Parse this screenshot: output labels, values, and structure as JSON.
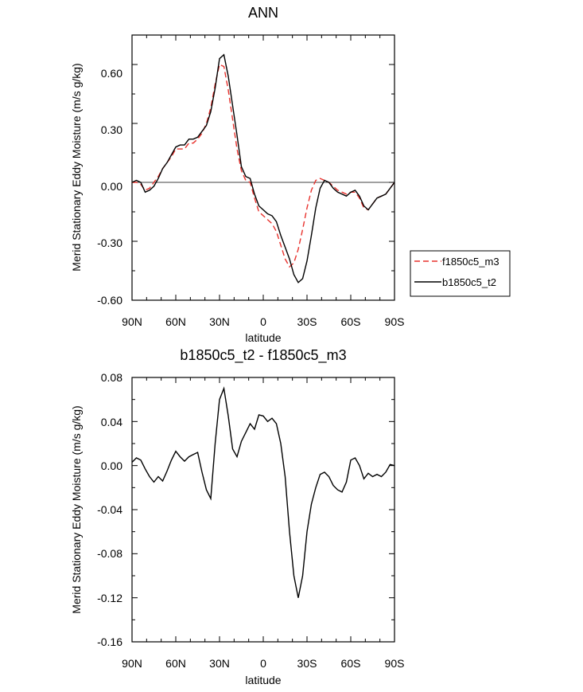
{
  "chart_data": [
    {
      "type": "line",
      "title": "ANN",
      "xlabel": "latitude",
      "ylabel": "Merid Stationary Eddy Moisture (m/s g/kg)",
      "xlim": [
        90,
        -90
      ],
      "ylim": [
        -0.6,
        0.75
      ],
      "x_ticks": [
        90,
        60,
        30,
        0,
        -30,
        -60,
        -90
      ],
      "x_tick_labels": [
        "90N",
        "60N",
        "30N",
        "0",
        "30S",
        "60S",
        "90S"
      ],
      "y_ticks": [
        -0.6,
        -0.3,
        0.0,
        0.3,
        0.6
      ],
      "y_tick_labels": [
        "-0.60",
        "-0.30",
        "0.00",
        "0.30",
        "0.60"
      ],
      "legend": {
        "placement": "right",
        "entries": [
          "f1850c5_m3",
          "b1850c5_t2"
        ]
      },
      "series": [
        {
          "name": "f1850c5_m3",
          "color": "#e8322d",
          "style": "dashed",
          "x": [
            90,
            87,
            84,
            81,
            78,
            75,
            72,
            69,
            66,
            63,
            60,
            57,
            54,
            51,
            48,
            45,
            42,
            39,
            36,
            33,
            30,
            27,
            24,
            21,
            18,
            15,
            12,
            9,
            6,
            3,
            0,
            -3,
            -6,
            -9,
            -12,
            -15,
            -18,
            -21,
            -24,
            -27,
            -30,
            -33,
            -36,
            -39,
            -42,
            -45,
            -48,
            -51,
            -54,
            -57,
            -60,
            -63,
            -66,
            -69,
            -72,
            -75,
            -78,
            -81,
            -84,
            -87,
            -90
          ],
          "y": [
            0.0,
            0.0,
            -0.01,
            -0.04,
            -0.03,
            0.0,
            0.03,
            0.07,
            0.1,
            0.13,
            0.17,
            0.17,
            0.17,
            0.2,
            0.2,
            0.22,
            0.25,
            0.3,
            0.38,
            0.5,
            0.6,
            0.59,
            0.47,
            0.32,
            0.17,
            0.06,
            0.01,
            0.0,
            -0.08,
            -0.15,
            -0.17,
            -0.19,
            -0.21,
            -0.25,
            -0.32,
            -0.39,
            -0.43,
            -0.41,
            -0.34,
            -0.24,
            -0.13,
            -0.04,
            0.01,
            0.02,
            0.01,
            0.0,
            -0.02,
            -0.04,
            -0.05,
            -0.06,
            -0.05,
            -0.05,
            -0.08,
            -0.13,
            -0.14,
            -0.11,
            -0.08,
            -0.07,
            -0.06,
            -0.03,
            0.0
          ]
        },
        {
          "name": "b1850c5_t2",
          "color": "#000000",
          "style": "solid",
          "x": [
            90,
            87,
            84,
            81,
            78,
            75,
            72,
            69,
            66,
            63,
            60,
            57,
            54,
            51,
            48,
            45,
            42,
            39,
            36,
            33,
            30,
            27,
            24,
            21,
            18,
            15,
            12,
            9,
            6,
            3,
            0,
            -3,
            -6,
            -9,
            -12,
            -15,
            -18,
            -21,
            -24,
            -27,
            -30,
            -33,
            -36,
            -39,
            -42,
            -45,
            -48,
            -51,
            -54,
            -57,
            -60,
            -63,
            -66,
            -69,
            -72,
            -75,
            -78,
            -81,
            -84,
            -87,
            -90
          ],
          "y": [
            0.0,
            0.01,
            0.0,
            -0.05,
            -0.04,
            -0.02,
            0.02,
            0.07,
            0.1,
            0.14,
            0.18,
            0.19,
            0.19,
            0.22,
            0.22,
            0.23,
            0.26,
            0.29,
            0.36,
            0.48,
            0.63,
            0.65,
            0.54,
            0.39,
            0.24,
            0.08,
            0.03,
            0.02,
            -0.06,
            -0.12,
            -0.14,
            -0.16,
            -0.17,
            -0.2,
            -0.27,
            -0.33,
            -0.39,
            -0.47,
            -0.51,
            -0.49,
            -0.4,
            -0.27,
            -0.13,
            -0.03,
            0.01,
            0.0,
            -0.03,
            -0.05,
            -0.06,
            -0.07,
            -0.05,
            -0.04,
            -0.07,
            -0.12,
            -0.14,
            -0.11,
            -0.08,
            -0.07,
            -0.06,
            -0.03,
            0.0
          ]
        }
      ]
    },
    {
      "type": "line",
      "title": "b1850c5_t2 - f1850c5_m3",
      "xlabel": "latitude",
      "ylabel": "Merid Stationary Eddy Moisture (m/s g/kg)",
      "xlim": [
        90,
        -90
      ],
      "ylim": [
        -0.16,
        0.08
      ],
      "x_ticks": [
        90,
        60,
        30,
        0,
        -30,
        -60,
        -90
      ],
      "x_tick_labels": [
        "90N",
        "60N",
        "30N",
        "0",
        "30S",
        "60S",
        "90S"
      ],
      "y_ticks": [
        -0.16,
        -0.12,
        -0.08,
        -0.04,
        0.0,
        0.04,
        0.08
      ],
      "y_tick_labels": [
        "-0.16",
        "-0.12",
        "-0.08",
        "-0.04",
        "0.00",
        "0.04",
        "0.08"
      ],
      "series": [
        {
          "color": "#000000",
          "style": "solid",
          "x": [
            90,
            87,
            84,
            81,
            78,
            75,
            72,
            69,
            66,
            63,
            60,
            57,
            54,
            51,
            48,
            45,
            42,
            39,
            36,
            33,
            30,
            27,
            24,
            21,
            18,
            15,
            12,
            9,
            6,
            3,
            0,
            -3,
            -6,
            -9,
            -12,
            -15,
            -18,
            -21,
            -24,
            -27,
            -30,
            -33,
            -36,
            -39,
            -42,
            -45,
            -48,
            -51,
            -54,
            -57,
            -60,
            -63,
            -66,
            -69,
            -72,
            -75,
            -78,
            -81,
            -84,
            -87,
            -90
          ],
          "y": [
            0.003,
            0.007,
            0.005,
            -0.003,
            -0.01,
            -0.015,
            -0.01,
            -0.014,
            -0.005,
            0.005,
            0.013,
            0.008,
            0.004,
            0.008,
            0.01,
            0.012,
            -0.006,
            -0.022,
            -0.03,
            0.02,
            0.06,
            0.07,
            0.045,
            0.015,
            0.008,
            0.022,
            0.03,
            0.038,
            0.033,
            0.046,
            0.045,
            0.04,
            0.043,
            0.038,
            0.02,
            -0.01,
            -0.06,
            -0.1,
            -0.12,
            -0.1,
            -0.06,
            -0.035,
            -0.02,
            -0.008,
            -0.006,
            -0.01,
            -0.018,
            -0.022,
            -0.024,
            -0.015,
            0.005,
            0.007,
            0.0,
            -0.012,
            -0.007,
            -0.01,
            -0.008,
            -0.01,
            -0.006,
            0.001,
            0.0
          ]
        }
      ]
    }
  ]
}
